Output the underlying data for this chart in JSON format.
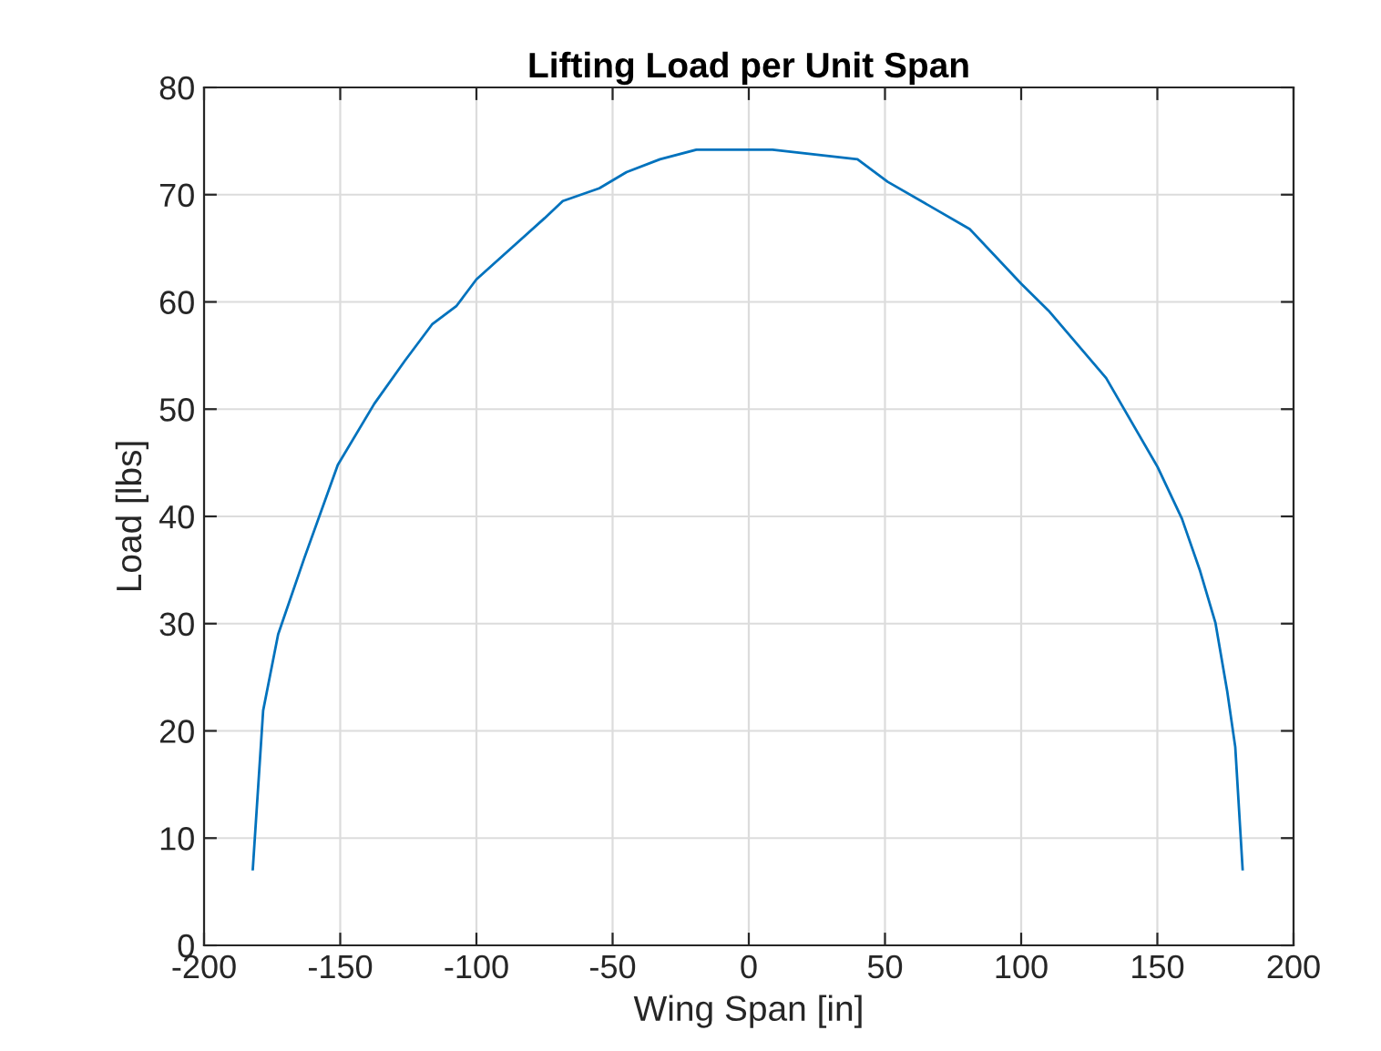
{
  "chart_data": {
    "type": "line",
    "title": "Lifting Load per Unit Span",
    "xlabel": "Wing Span [in]",
    "ylabel": "Load [lbs]",
    "series": [
      {
        "color": "#0072bd",
        "x": [
          -182.1,
          -178.3,
          -172.8,
          -163.2,
          -150.9,
          -137.5,
          -126.3,
          -116.3,
          -107.4,
          -100,
          -75,
          -68.3,
          -54.9,
          -44.9,
          -32.6,
          -19.2,
          8.7,
          39.9,
          51.0,
          81.1,
          100,
          110,
          131.2,
          150.1,
          159,
          165.7,
          171.3,
          175.7,
          178.6,
          181.3
        ],
        "values": [
          7.1,
          21.9,
          29.0,
          36.1,
          44.8,
          50.5,
          54.5,
          57.9,
          59.6,
          62.1,
          67.8,
          69.4,
          70.6,
          72.1,
          73.3,
          74.2,
          74.2,
          73.3,
          71.2,
          66.8,
          61.7,
          59.2,
          52.9,
          44.6,
          39.8,
          34.9,
          30.1,
          23.6,
          18.5,
          7.1
        ]
      }
    ],
    "xlim": [
      -200,
      200
    ],
    "xticks": [
      -200,
      -150,
      -100,
      -50,
      0,
      50,
      100,
      150,
      200
    ],
    "ylim": [
      0,
      80
    ],
    "yticks": [
      0,
      10,
      20,
      30,
      40,
      50,
      60,
      70,
      80
    ],
    "grid": true,
    "legend": false,
    "marker": "none",
    "line_style": "solid"
  }
}
